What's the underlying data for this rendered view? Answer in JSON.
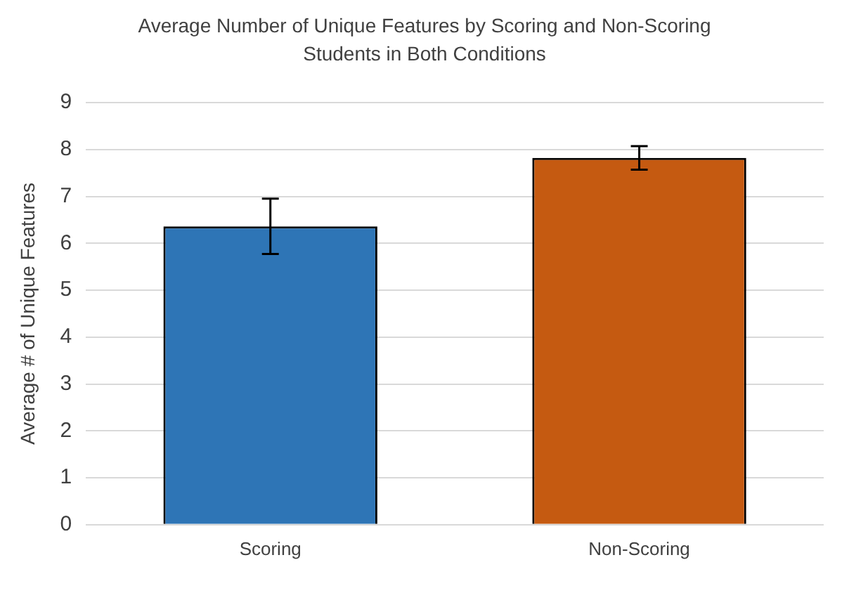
{
  "chart_data": {
    "type": "bar",
    "title": "Average Number of Unique Features by Scoring and Non-Scoring Students in Both Conditions",
    "ylabel": "Average # of Unique Features",
    "categories": [
      "Scoring",
      "Non-Scoring"
    ],
    "values": [
      6.36,
      7.82
    ],
    "colors": [
      "#2e75b6",
      "#c55a11"
    ],
    "errors": [
      [
        5.77,
        6.95
      ],
      [
        7.57,
        8.07
      ]
    ],
    "ylim": [
      0,
      9
    ],
    "yticks": [
      0,
      1,
      2,
      3,
      4,
      5,
      6,
      7,
      8,
      9
    ],
    "grid": "y"
  }
}
